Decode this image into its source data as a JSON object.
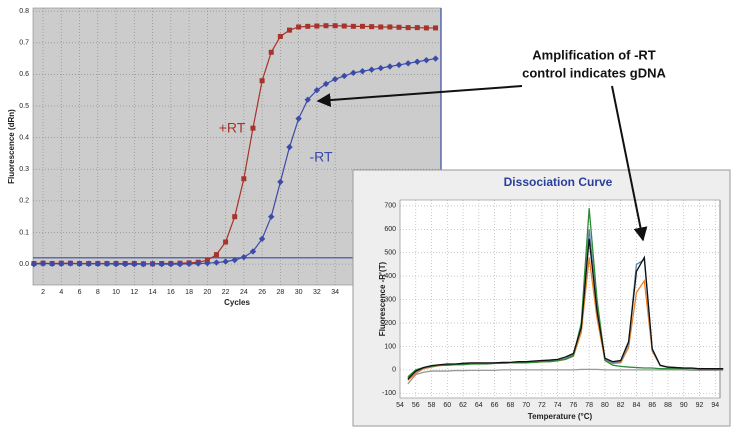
{
  "chart_data": [
    {
      "type": "line",
      "xlabel": "Cycles",
      "ylabel": "Fluorescence (dRn)",
      "x": [
        1,
        2,
        3,
        4,
        5,
        6,
        7,
        8,
        9,
        10,
        11,
        12,
        13,
        14,
        15,
        16,
        17,
        18,
        19,
        20,
        21,
        22,
        23,
        24,
        25,
        26,
        27,
        28,
        29,
        30,
        31,
        32,
        33,
        34,
        35,
        36,
        37,
        38,
        39,
        40,
        41,
        42,
        43,
        44,
        45
      ],
      "series": [
        {
          "color": "#a8332b",
          "marker": "square",
          "values": [
            0.002,
            0.003,
            0.002,
            0.003,
            0.003,
            0.002,
            0.002,
            0.002,
            0.002,
            0.002,
            0.002,
            0.002,
            0.001,
            0.001,
            0.002,
            0.002,
            0.003,
            0.004,
            0.006,
            0.012,
            0.03,
            0.07,
            0.15,
            0.27,
            0.43,
            0.58,
            0.67,
            0.72,
            0.74,
            0.75,
            0.752,
            0.753,
            0.754,
            0.754,
            0.753,
            0.752,
            0.752,
            0.751,
            0.75,
            0.75,
            0.749,
            0.748,
            0.748,
            0.747,
            0.747
          ]
        },
        {
          "color": "#3b4ba8",
          "marker": "diamond",
          "values": [
            0.0,
            0.002,
            0.001,
            0.001,
            0.002,
            0.001,
            0.001,
            0.001,
            0.001,
            0.0,
            0.0,
            0.0,
            0.0,
            0.001,
            0.0,
            0.0,
            0.0,
            0.001,
            0.002,
            0.003,
            0.005,
            0.008,
            0.013,
            0.022,
            0.04,
            0.08,
            0.15,
            0.26,
            0.37,
            0.46,
            0.52,
            0.55,
            0.57,
            0.585,
            0.595,
            0.605,
            0.61,
            0.615,
            0.62,
            0.625,
            0.63,
            0.635,
            0.64,
            0.645,
            0.65
          ]
        }
      ],
      "threshold": 0.02,
      "threshold_color": "#3b4ba8",
      "annotations": [
        "+RT",
        "-RT"
      ],
      "callout": [
        "Amplification of -RT",
        "control indicates gDNA"
      ],
      "xlim": [
        0.9,
        45.6
      ],
      "ylim": [
        -0.066,
        0.81
      ],
      "xticks": [
        2,
        4,
        6,
        8,
        10,
        12,
        14,
        16,
        18,
        20,
        22,
        24,
        26,
        28,
        30,
        32,
        34
      ],
      "yticks": [
        {
          "value": 0,
          "label": "0.0"
        },
        0.1,
        0.2,
        0.3,
        0.4,
        0.5,
        0.6,
        0.7,
        0.8
      ],
      "grid": true
    },
    {
      "type": "line",
      "title": "Dissociation Curve",
      "xlabel": "Temperature (°C)",
      "ylabel": "Fluorescence -R'(T)",
      "x": [
        55,
        56,
        57,
        58,
        59,
        60,
        61,
        62,
        63,
        64,
        65,
        66,
        67,
        68,
        69,
        70,
        71,
        72,
        73,
        74,
        75,
        76,
        77,
        78,
        79,
        80,
        81,
        82,
        83,
        84,
        85,
        86,
        87,
        88,
        89,
        90,
        91,
        92,
        93,
        94,
        95
      ],
      "series": [
        {
          "color": "#999999",
          "values": [
            -60,
            -20,
            -10,
            -5,
            -5,
            -5,
            -3,
            -3,
            -2,
            -2,
            -2,
            -2,
            0,
            0,
            0,
            0,
            0,
            0,
            0,
            0,
            0,
            0,
            2,
            2,
            2,
            0,
            0,
            0,
            0,
            0,
            0,
            0,
            0,
            0,
            0,
            0,
            -2,
            -2,
            -2,
            -2,
            -2
          ]
        },
        {
          "color": "#e8822a",
          "values": [
            -45,
            -15,
            5,
            12,
            18,
            20,
            22,
            24,
            25,
            26,
            26,
            28,
            28,
            30,
            30,
            32,
            32,
            34,
            36,
            38,
            45,
            58,
            160,
            480,
            220,
            40,
            28,
            30,
            95,
            330,
            380,
            80,
            20,
            12,
            10,
            8,
            6,
            6,
            5,
            5,
            5
          ]
        },
        {
          "color": "#5b86a8",
          "values": [
            -35,
            -8,
            8,
            15,
            20,
            22,
            24,
            25,
            26,
            28,
            28,
            30,
            30,
            30,
            32,
            32,
            34,
            36,
            38,
            40,
            48,
            65,
            190,
            600,
            270,
            45,
            30,
            35,
            110,
            450,
            470,
            85,
            18,
            10,
            8,
            6,
            6,
            5,
            5,
            4,
            4
          ]
        },
        {
          "color": "#2e8b3a",
          "values": [
            -30,
            0,
            10,
            15,
            20,
            20,
            22,
            22,
            25,
            25,
            25,
            28,
            28,
            30,
            30,
            30,
            32,
            35,
            35,
            40,
            45,
            60,
            200,
            690,
            300,
            40,
            20,
            15,
            12,
            10,
            8,
            8,
            5,
            5,
            5,
            5,
            5,
            3,
            3,
            3,
            3
          ]
        },
        {
          "color": "#111111",
          "values": [
            -40,
            -5,
            10,
            18,
            22,
            25,
            25,
            28,
            30,
            30,
            30,
            30,
            32,
            32,
            35,
            35,
            38,
            40,
            42,
            45,
            55,
            70,
            180,
            560,
            250,
            50,
            35,
            40,
            120,
            420,
            480,
            90,
            20,
            12,
            10,
            8,
            8,
            5,
            5,
            5,
            5
          ]
        }
      ],
      "xlim": [
        54,
        94.6
      ],
      "ylim": [
        -120,
        725
      ],
      "xticks": [
        54,
        56,
        58,
        60,
        62,
        64,
        66,
        68,
        70,
        72,
        74,
        76,
        78,
        80,
        82,
        84,
        86,
        88,
        90,
        92,
        94
      ],
      "yticks": [
        -100,
        0,
        100,
        200,
        300,
        400,
        500,
        600,
        700
      ],
      "grid": true
    }
  ]
}
